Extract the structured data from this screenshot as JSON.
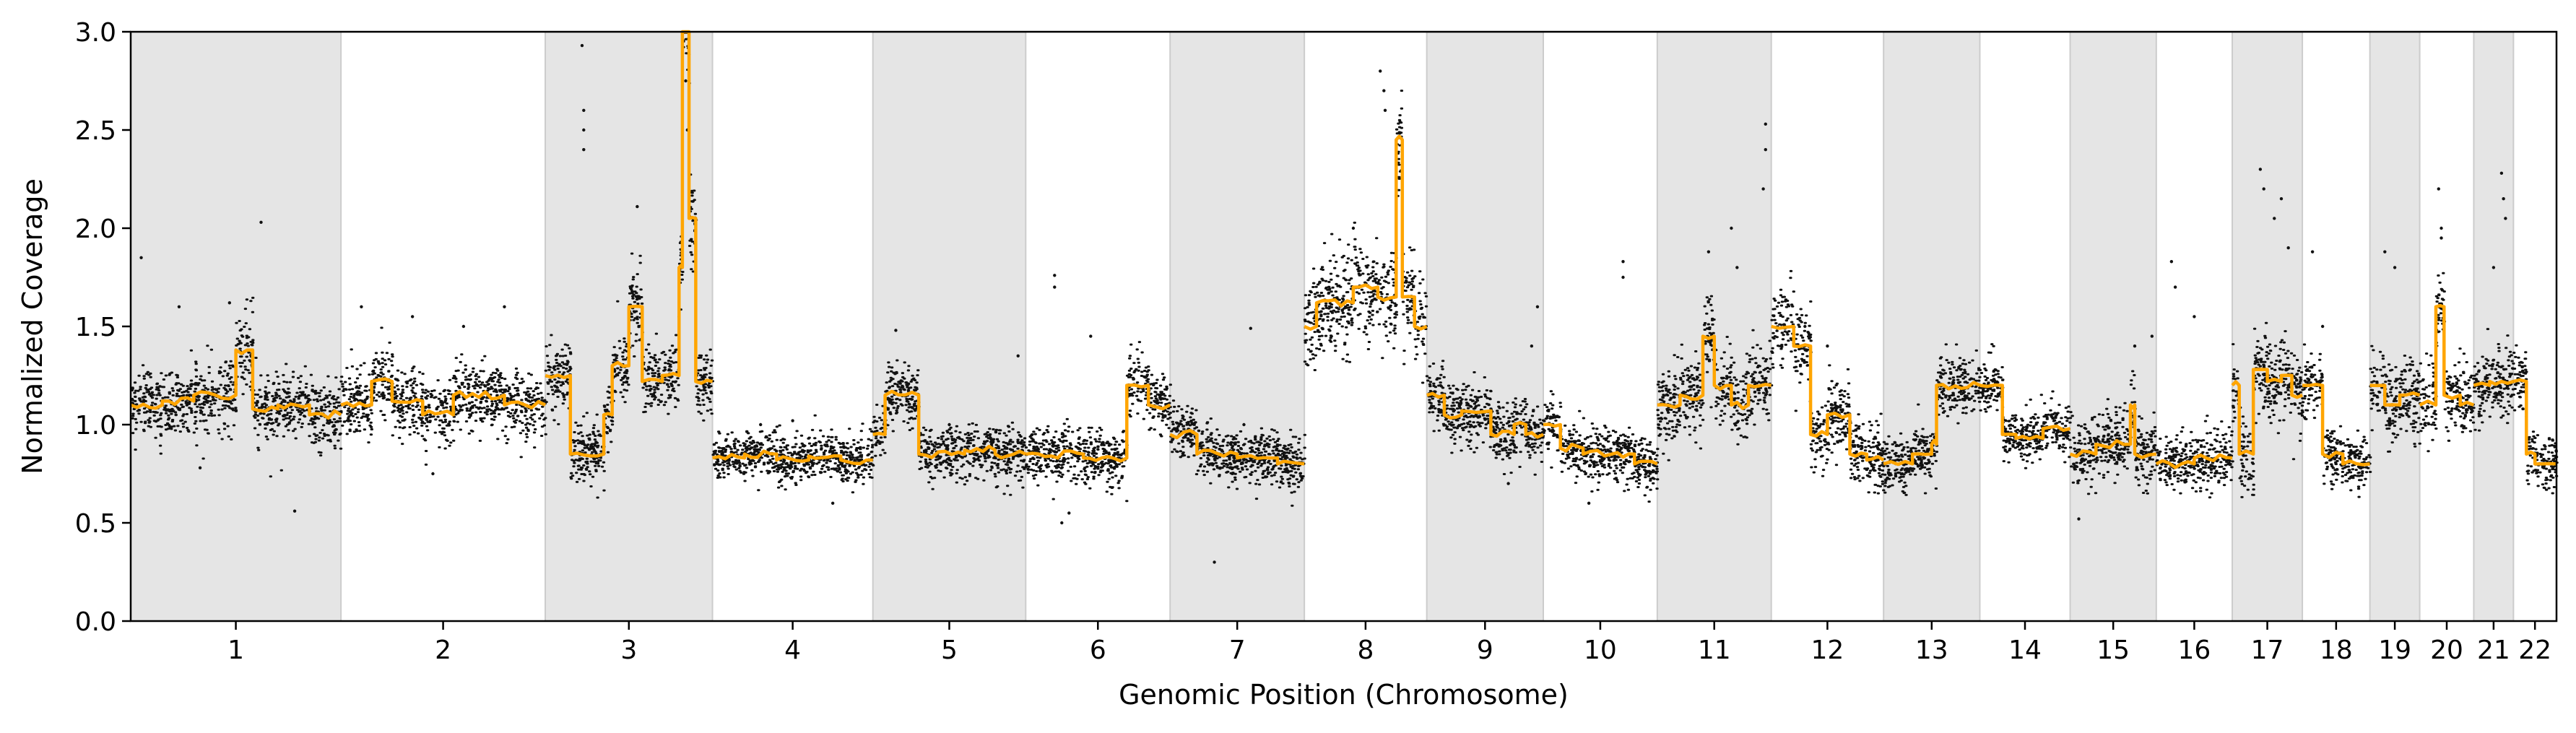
{
  "chart_data": {
    "type": "scatter",
    "xlabel": "Genomic Position (Chromosome)",
    "ylabel": "Normalized Coverage",
    "ylim": [
      0.0,
      3.0
    ],
    "yticks": [
      "0.0",
      "0.5",
      "1.0",
      "1.5",
      "2.0",
      "2.5",
      "3.0"
    ],
    "grid": false,
    "legend": "none",
    "colors": {
      "points": "#000000",
      "segments": "#FFA500",
      "shade": "#E5E5E5"
    },
    "series": [
      {
        "type": "scatter",
        "values": "per-bin normalized coverage"
      },
      {
        "type": "step-line",
        "values": "segmented coverage"
      }
    ],
    "chromosomes": [
      {
        "label": "1",
        "length": 249,
        "shaded": true,
        "median": 1.1,
        "base": 1.1,
        "noise": 0.08,
        "segments": [
          [
            0.0,
            0.15,
            1.1
          ],
          [
            0.15,
            0.3,
            1.12
          ],
          [
            0.3,
            0.5,
            1.15
          ],
          [
            0.5,
            0.58,
            1.38
          ],
          [
            0.58,
            0.7,
            1.08
          ],
          [
            0.7,
            0.85,
            1.1
          ],
          [
            0.85,
            1.0,
            1.05
          ]
        ],
        "outliers": [
          [
            0.05,
            1.85
          ],
          [
            0.23,
            1.6
          ],
          [
            0.47,
            1.62
          ],
          [
            0.62,
            2.03
          ],
          [
            0.78,
            0.56
          ],
          [
            0.33,
            0.78
          ]
        ]
      },
      {
        "label": "2",
        "length": 242,
        "shaded": false,
        "median": 1.12,
        "base": 1.12,
        "noise": 0.08,
        "segments": [
          [
            0.0,
            0.15,
            1.1
          ],
          [
            0.15,
            0.25,
            1.22
          ],
          [
            0.25,
            0.4,
            1.12
          ],
          [
            0.4,
            0.55,
            1.05
          ],
          [
            0.55,
            0.8,
            1.15
          ],
          [
            0.8,
            1.0,
            1.1
          ]
        ],
        "outliers": [
          [
            0.1,
            1.6
          ],
          [
            0.35,
            1.55
          ],
          [
            0.6,
            1.5
          ],
          [
            0.8,
            1.6
          ],
          [
            0.45,
            0.75
          ]
        ]
      },
      {
        "label": "3",
        "length": 198,
        "shaded": true,
        "median": 1.05,
        "base": 1.0,
        "noise": 0.08,
        "segments": [
          [
            0.0,
            0.15,
            1.25
          ],
          [
            0.15,
            0.35,
            0.85
          ],
          [
            0.35,
            0.4,
            1.05
          ],
          [
            0.4,
            0.5,
            1.3
          ],
          [
            0.5,
            0.58,
            1.6
          ],
          [
            0.58,
            0.7,
            1.22
          ],
          [
            0.7,
            0.8,
            1.25
          ],
          [
            0.8,
            0.82,
            1.8
          ],
          [
            0.82,
            0.86,
            3.0
          ],
          [
            0.86,
            0.9,
            2.05
          ],
          [
            0.9,
            1.0,
            1.22
          ]
        ],
        "outliers": [
          [
            0.22,
            2.93
          ],
          [
            0.23,
            2.6
          ],
          [
            0.23,
            2.5
          ],
          [
            0.23,
            2.4
          ],
          [
            0.55,
            2.11
          ],
          [
            0.84,
            2.75
          ],
          [
            0.85,
            2.5
          ],
          [
            0.8,
            1.55
          ]
        ]
      },
      {
        "label": "4",
        "length": 190,
        "shaded": false,
        "median": 0.83,
        "base": 0.83,
        "noise": 0.06,
        "segments": [
          [
            0.0,
            0.2,
            0.83
          ],
          [
            0.2,
            0.4,
            0.85
          ],
          [
            0.4,
            0.6,
            0.82
          ],
          [
            0.6,
            0.8,
            0.84
          ],
          [
            0.8,
            1.0,
            0.82
          ]
        ],
        "outliers": [
          [
            0.5,
            1.02
          ],
          [
            0.3,
            1.0
          ],
          [
            0.75,
            0.6
          ]
        ]
      },
      {
        "label": "5",
        "length": 181,
        "shaded": true,
        "median": 0.86,
        "base": 0.86,
        "noise": 0.07,
        "segments": [
          [
            0.0,
            0.08,
            0.95
          ],
          [
            0.08,
            0.3,
            1.15
          ],
          [
            0.3,
            0.6,
            0.85
          ],
          [
            0.6,
            0.8,
            0.87
          ],
          [
            0.8,
            1.0,
            0.85
          ]
        ],
        "outliers": [
          [
            0.15,
            1.48
          ],
          [
            0.5,
            1.0
          ],
          [
            0.95,
            1.35
          ]
        ]
      },
      {
        "label": "6",
        "length": 171,
        "shaded": false,
        "median": 0.85,
        "base": 0.85,
        "noise": 0.07,
        "segments": [
          [
            0.0,
            0.4,
            0.85
          ],
          [
            0.4,
            0.7,
            0.83
          ],
          [
            0.7,
            0.85,
            1.2
          ],
          [
            0.85,
            1.0,
            1.1
          ]
        ],
        "outliers": [
          [
            0.2,
            1.76
          ],
          [
            0.2,
            1.7
          ],
          [
            0.45,
            1.45
          ],
          [
            0.3,
            0.55
          ],
          [
            0.25,
            0.5
          ]
        ]
      },
      {
        "label": "7",
        "length": 159,
        "shaded": true,
        "median": 0.85,
        "base": 0.85,
        "noise": 0.07,
        "segments": [
          [
            0.0,
            0.2,
            0.95
          ],
          [
            0.2,
            0.5,
            0.85
          ],
          [
            0.5,
            0.8,
            0.83
          ],
          [
            0.8,
            1.0,
            0.8
          ]
        ],
        "outliers": [
          [
            0.33,
            0.3
          ],
          [
            0.6,
            1.49
          ],
          [
            0.55,
            1.0
          ]
        ]
      },
      {
        "label": "8",
        "length": 145,
        "shaded": false,
        "median": 1.58,
        "base": 1.58,
        "noise": 0.1,
        "segments": [
          [
            0.0,
            0.1,
            1.5
          ],
          [
            0.1,
            0.4,
            1.62
          ],
          [
            0.4,
            0.6,
            1.7
          ],
          [
            0.6,
            0.75,
            1.65
          ],
          [
            0.75,
            0.8,
            2.45
          ],
          [
            0.8,
            0.9,
            1.65
          ],
          [
            0.9,
            1.0,
            1.5
          ]
        ],
        "outliers": [
          [
            0.62,
            2.8
          ],
          [
            0.65,
            2.7
          ],
          [
            0.66,
            2.6
          ],
          [
            0.4,
            2.0
          ]
        ]
      },
      {
        "label": "9",
        "length": 138,
        "shaded": true,
        "median": 1.0,
        "base": 1.0,
        "noise": 0.07,
        "segments": [
          [
            0.0,
            0.15,
            1.15
          ],
          [
            0.15,
            0.3,
            1.05
          ],
          [
            0.3,
            0.55,
            1.07
          ],
          [
            0.55,
            0.75,
            0.95
          ],
          [
            0.75,
            0.85,
            1.0
          ],
          [
            0.85,
            1.0,
            0.95
          ]
        ],
        "outliers": [
          [
            0.95,
            1.6
          ],
          [
            0.9,
            1.4
          ],
          [
            0.7,
            0.7
          ]
        ]
      },
      {
        "label": "10",
        "length": 135,
        "shaded": false,
        "median": 0.85,
        "base": 0.85,
        "noise": 0.07,
        "segments": [
          [
            0.0,
            0.15,
            1.0
          ],
          [
            0.15,
            0.35,
            0.88
          ],
          [
            0.35,
            0.6,
            0.85
          ],
          [
            0.6,
            0.8,
            0.85
          ],
          [
            0.8,
            1.0,
            0.8
          ]
        ],
        "outliers": [
          [
            0.7,
            1.83
          ],
          [
            0.7,
            1.75
          ],
          [
            0.4,
            0.6
          ]
        ]
      },
      {
        "label": "11",
        "length": 135,
        "shaded": true,
        "median": 1.12,
        "base": 1.12,
        "noise": 0.09,
        "segments": [
          [
            0.0,
            0.2,
            1.1
          ],
          [
            0.2,
            0.4,
            1.15
          ],
          [
            0.4,
            0.5,
            1.45
          ],
          [
            0.5,
            0.65,
            1.2
          ],
          [
            0.65,
            0.8,
            1.1
          ],
          [
            0.8,
            1.0,
            1.2
          ]
        ],
        "outliers": [
          [
            0.45,
            1.88
          ],
          [
            0.65,
            2.0
          ],
          [
            0.7,
            1.8
          ],
          [
            0.95,
            2.53
          ],
          [
            0.95,
            2.4
          ],
          [
            0.93,
            2.2
          ]
        ]
      },
      {
        "label": "12",
        "length": 133,
        "shaded": false,
        "median": 1.0,
        "base": 1.0,
        "noise": 0.09,
        "segments": [
          [
            0.0,
            0.2,
            1.5
          ],
          [
            0.2,
            0.35,
            1.4
          ],
          [
            0.35,
            0.5,
            0.95
          ],
          [
            0.5,
            0.7,
            1.05
          ],
          [
            0.7,
            0.85,
            0.85
          ],
          [
            0.85,
            1.0,
            0.82
          ]
        ],
        "outliers": [
          [
            0.3,
            1.5
          ],
          [
            0.5,
            1.4
          ]
        ]
      },
      {
        "label": "13",
        "length": 114,
        "shaded": true,
        "median": 1.0,
        "base": 1.0,
        "noise": 0.07,
        "segments": [
          [
            0.0,
            0.3,
            0.8
          ],
          [
            0.3,
            0.5,
            0.85
          ],
          [
            0.5,
            0.55,
            0.9
          ],
          [
            0.55,
            1.0,
            1.2
          ]
        ],
        "outliers": []
      },
      {
        "label": "14",
        "length": 107,
        "shaded": false,
        "median": 0.95,
        "base": 0.95,
        "noise": 0.06,
        "segments": [
          [
            0.0,
            0.25,
            1.2
          ],
          [
            0.25,
            0.4,
            0.95
          ],
          [
            0.4,
            0.7,
            0.93
          ],
          [
            0.7,
            1.0,
            0.98
          ]
        ],
        "outliers": []
      },
      {
        "label": "15",
        "length": 102,
        "shaded": true,
        "median": 0.87,
        "base": 0.87,
        "noise": 0.08,
        "segments": [
          [
            0.0,
            0.3,
            0.85
          ],
          [
            0.3,
            0.7,
            0.9
          ],
          [
            0.7,
            0.75,
            1.1
          ],
          [
            0.75,
            1.0,
            0.85
          ]
        ],
        "outliers": [
          [
            0.1,
            0.52
          ],
          [
            0.75,
            1.4
          ],
          [
            0.95,
            1.45
          ]
        ]
      },
      {
        "label": "16",
        "length": 90,
        "shaded": false,
        "median": 0.82,
        "base": 0.82,
        "noise": 0.07,
        "segments": [
          [
            0.0,
            0.5,
            0.8
          ],
          [
            0.5,
            1.0,
            0.83
          ]
        ],
        "outliers": [
          [
            0.2,
            1.83
          ],
          [
            0.25,
            1.7
          ],
          [
            0.5,
            1.55
          ]
        ]
      },
      {
        "label": "17",
        "length": 83,
        "shaded": true,
        "median": 1.1,
        "base": 1.1,
        "noise": 0.1,
        "segments": [
          [
            0.0,
            0.1,
            1.2
          ],
          [
            0.1,
            0.3,
            0.85
          ],
          [
            0.3,
            0.5,
            1.28
          ],
          [
            0.5,
            0.7,
            1.22
          ],
          [
            0.7,
            0.85,
            1.25
          ],
          [
            0.85,
            1.0,
            1.15
          ]
        ],
        "outliers": [
          [
            0.4,
            2.3
          ],
          [
            0.45,
            2.2
          ],
          [
            0.6,
            2.05
          ],
          [
            0.7,
            2.15
          ],
          [
            0.8,
            1.9
          ]
        ]
      },
      {
        "label": "18",
        "length": 80,
        "shaded": false,
        "median": 0.85,
        "base": 0.85,
        "noise": 0.07,
        "segments": [
          [
            0.0,
            0.3,
            1.2
          ],
          [
            0.3,
            0.6,
            0.85
          ],
          [
            0.6,
            1.0,
            0.8
          ]
        ],
        "outliers": [
          [
            0.15,
            1.88
          ],
          [
            0.3,
            1.5
          ]
        ]
      },
      {
        "label": "19",
        "length": 59,
        "shaded": true,
        "median": 1.1,
        "base": 1.1,
        "noise": 0.1,
        "segments": [
          [
            0.0,
            0.3,
            1.2
          ],
          [
            0.3,
            0.6,
            1.1
          ],
          [
            0.6,
            1.0,
            1.15
          ]
        ],
        "outliers": [
          [
            0.3,
            1.88
          ],
          [
            0.5,
            1.8
          ]
        ]
      },
      {
        "label": "20",
        "length": 64,
        "shaded": false,
        "median": 1.15,
        "base": 1.15,
        "noise": 0.09,
        "segments": [
          [
            0.0,
            0.3,
            1.1
          ],
          [
            0.3,
            0.45,
            1.6
          ],
          [
            0.45,
            0.75,
            1.15
          ],
          [
            0.75,
            1.0,
            1.1
          ]
        ],
        "outliers": [
          [
            0.35,
            2.2
          ],
          [
            0.4,
            2.0
          ],
          [
            0.4,
            1.95
          ]
        ]
      },
      {
        "label": "21",
        "length": 47,
        "shaded": true,
        "median": 1.15,
        "base": 1.15,
        "noise": 0.09,
        "segments": [
          [
            0.0,
            0.4,
            1.2
          ],
          [
            0.4,
            1.0,
            1.22
          ]
        ],
        "outliers": [
          [
            0.7,
            2.28
          ],
          [
            0.75,
            2.15
          ],
          [
            0.8,
            2.05
          ],
          [
            0.5,
            1.8
          ]
        ]
      },
      {
        "label": "22",
        "length": 51,
        "shaded": false,
        "median": 0.85,
        "base": 0.85,
        "noise": 0.07,
        "segments": [
          [
            0.0,
            0.3,
            1.22
          ],
          [
            0.3,
            0.5,
            0.85
          ],
          [
            0.5,
            1.0,
            0.8
          ]
        ],
        "outliers": []
      }
    ]
  }
}
